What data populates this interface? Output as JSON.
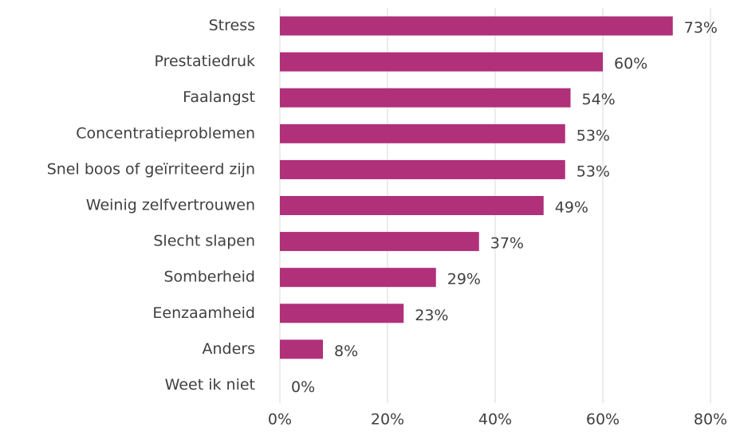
{
  "chart_data": {
    "type": "bar",
    "orientation": "horizontal",
    "categories": [
      "Stress",
      "Prestatiedruk",
      "Faalangst",
      "Concentratieproblemen",
      "Snel boos of geïrriteerd zijn",
      "Weinig zelfvertrouwen",
      "Slecht slapen",
      "Somberheid",
      "Eenzaamheid",
      "Anders",
      "Weet ik niet"
    ],
    "values": [
      73,
      60,
      54,
      53,
      53,
      49,
      37,
      29,
      23,
      8,
      0
    ],
    "value_labels": [
      "73%",
      "60%",
      "54%",
      "53%",
      "53%",
      "49%",
      "37%",
      "29%",
      "23%",
      "8%",
      "0%"
    ],
    "color": "#b0307a",
    "xlim": [
      0,
      80
    ],
    "xticks": [
      {
        "value": 0,
        "label": "0%"
      },
      {
        "value": 20,
        "label": "20%"
      },
      {
        "value": 40,
        "label": "40%"
      },
      {
        "value": 60,
        "label": "60%"
      },
      {
        "value": 80,
        "label": "80%"
      }
    ],
    "grid": true
  }
}
